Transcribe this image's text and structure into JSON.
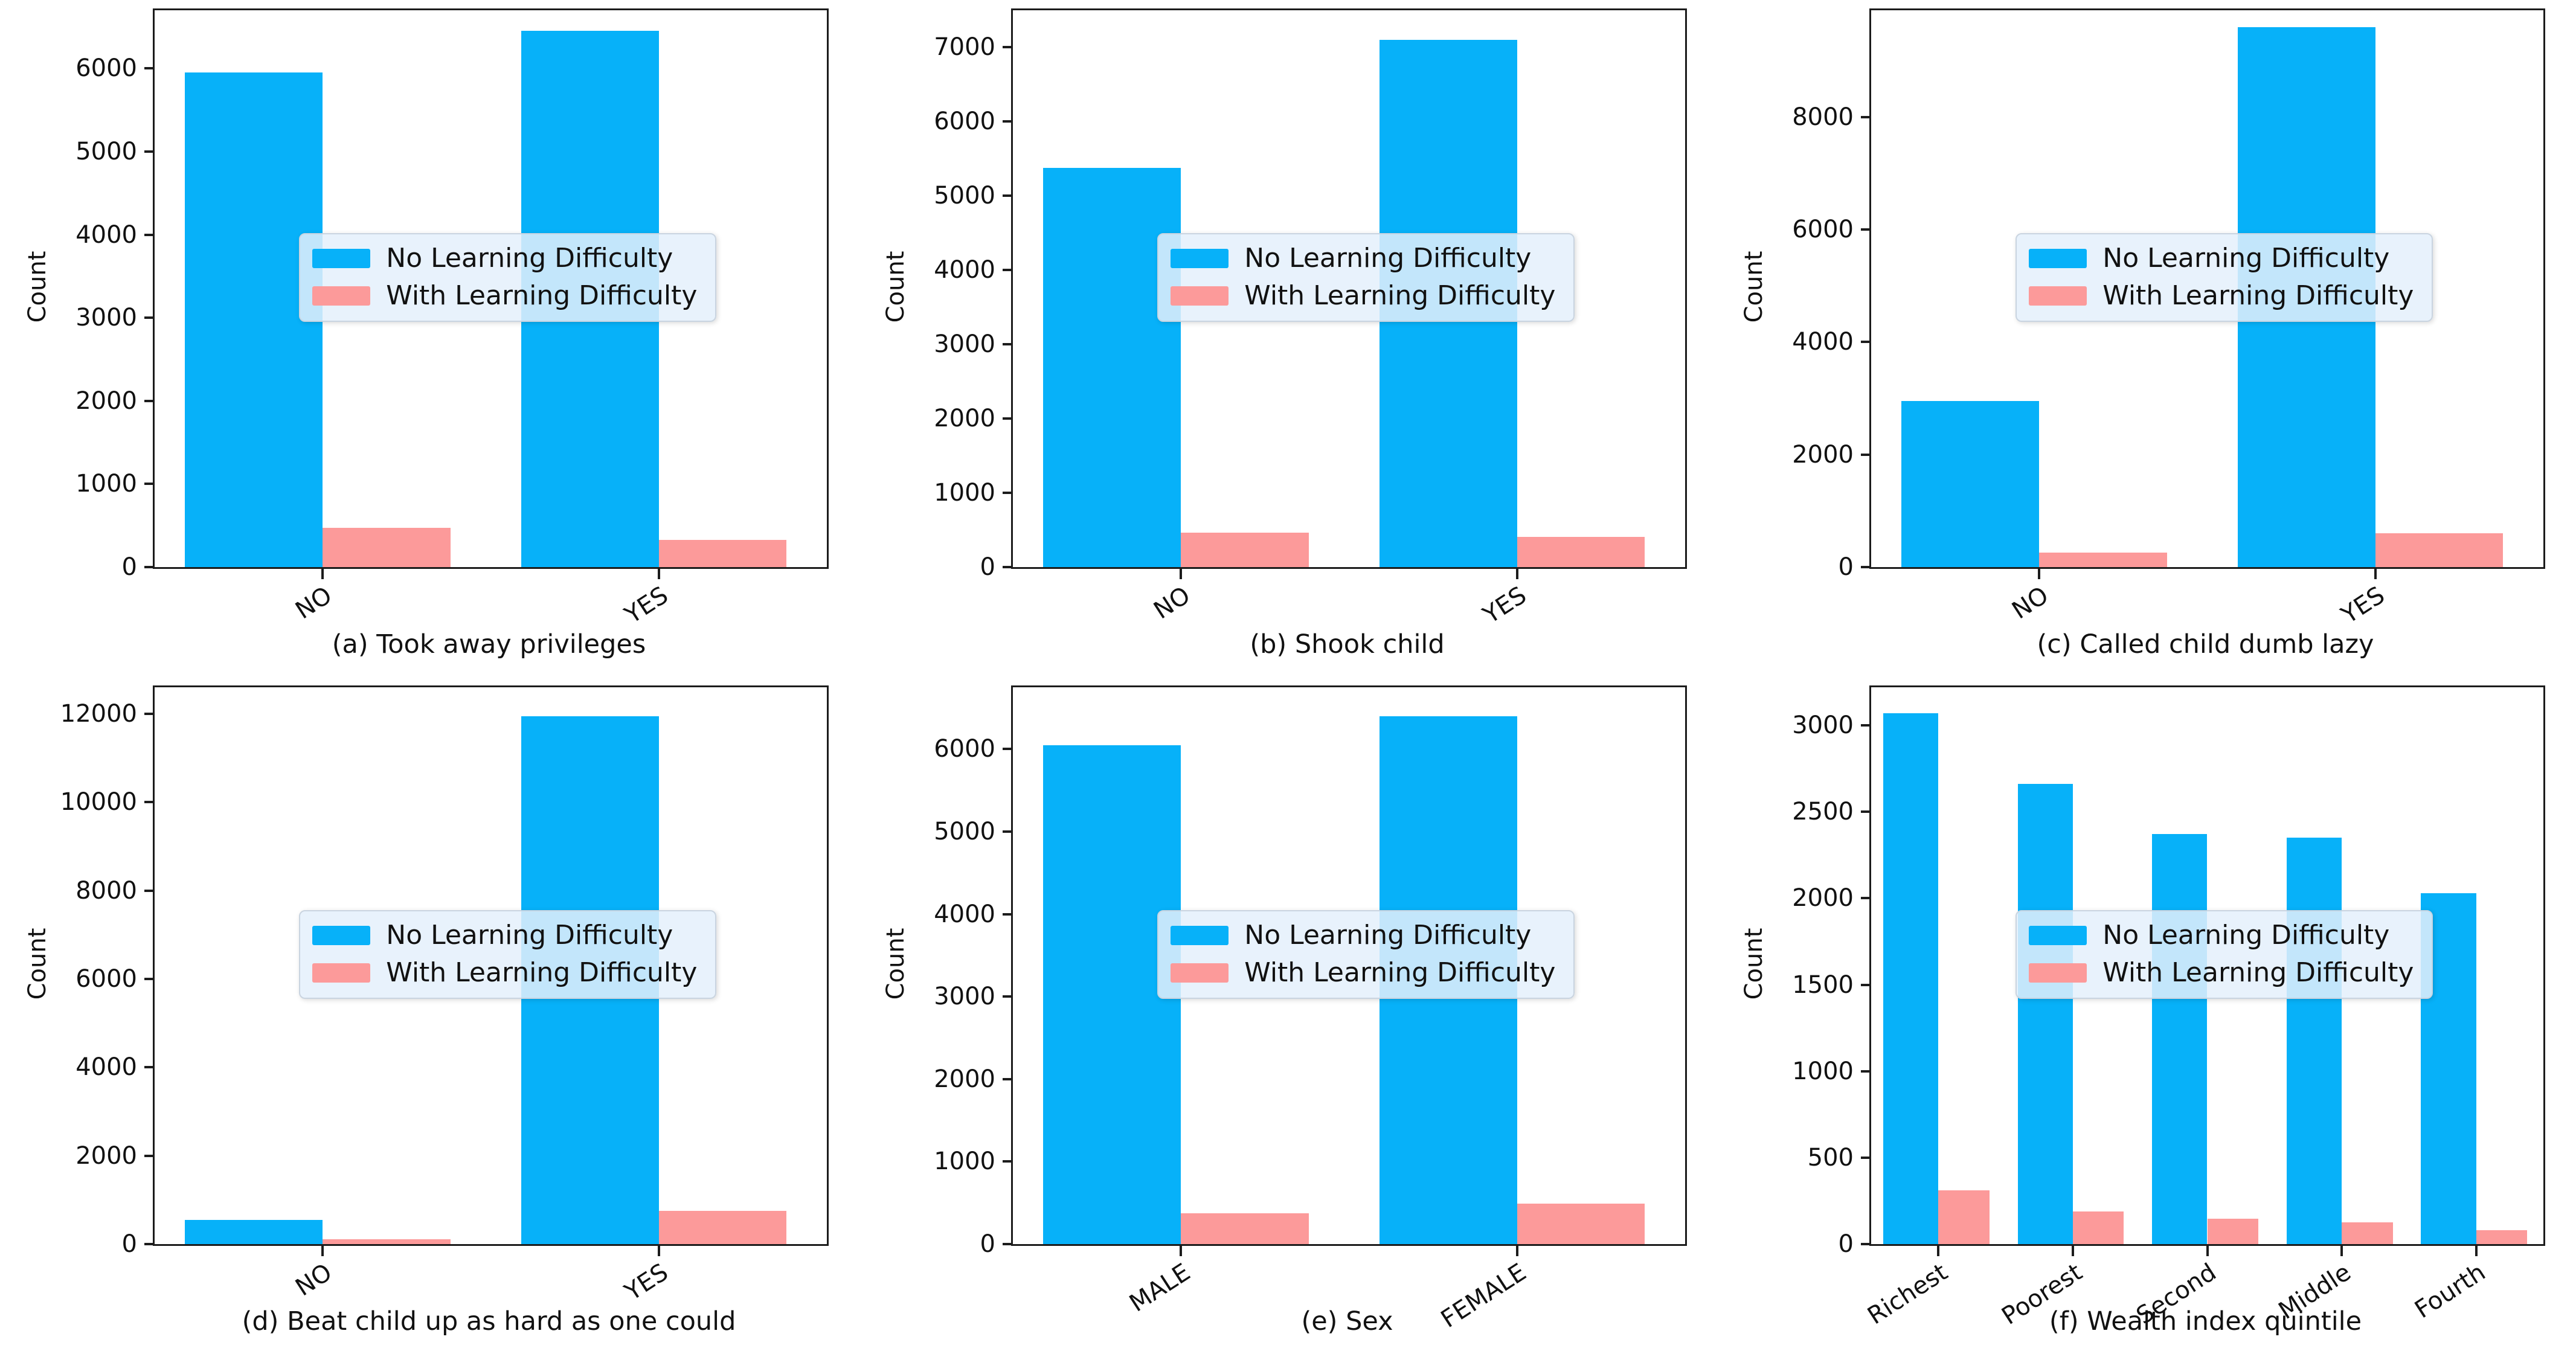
{
  "figure": {
    "ylabel": "Count"
  },
  "colors": {
    "no_learning": "#07B1F9",
    "with_learning": "#FC9A9A",
    "spine": "#1c1c1c",
    "legend_bg": "rgba(228,240,252,0.85)"
  },
  "legend": {
    "position": "center left",
    "items": [
      {
        "label": "No Learning Difficulty",
        "color": "#07B1F9"
      },
      {
        "label": "With Learning Difficulty",
        "color": "#FC9A9A"
      }
    ]
  },
  "chart_data": [
    {
      "id": "a",
      "type": "bar",
      "caption": "(a) Took away privileges",
      "xlabel": "Took away privileges",
      "ylabel": "Count",
      "categories": [
        "NO",
        "YES"
      ],
      "series": [
        {
          "name": "No Learning Difficulty",
          "values": [
            5950,
            6450
          ]
        },
        {
          "name": "With Learning Difficulty",
          "values": [
            470,
            330
          ]
        }
      ],
      "yticks": [
        0,
        1000,
        2000,
        3000,
        4000,
        5000,
        6000
      ],
      "ymax": 6700,
      "grid": false
    },
    {
      "id": "b",
      "type": "bar",
      "caption": "(b) Shook child",
      "xlabel": "Shook child",
      "ylabel": "Count",
      "categories": [
        "NO",
        "YES"
      ],
      "series": [
        {
          "name": "No Learning Difficulty",
          "values": [
            5380,
            7100
          ]
        },
        {
          "name": "With Learning Difficulty",
          "values": [
            460,
            405
          ]
        }
      ],
      "yticks": [
        0,
        1000,
        2000,
        3000,
        4000,
        5000,
        6000,
        7000
      ],
      "ymax": 7500,
      "grid": false
    },
    {
      "id": "c",
      "type": "bar",
      "caption": "(c) Called child dumb lazy",
      "xlabel": "Called child dumb lazy",
      "ylabel": "Count",
      "categories": [
        "NO",
        "YES"
      ],
      "series": [
        {
          "name": "No Learning Difficulty",
          "values": [
            2950,
            9600
          ]
        },
        {
          "name": "With Learning Difficulty",
          "values": [
            260,
            600
          ]
        }
      ],
      "yticks": [
        0,
        2000,
        4000,
        6000,
        8000
      ],
      "ymax": 9900,
      "grid": false
    },
    {
      "id": "d",
      "type": "bar",
      "caption": "(d) Beat child up as hard as one could",
      "xlabel": "Beat child up as hard as one could",
      "ylabel": "Count",
      "categories": [
        "NO",
        "YES"
      ],
      "series": [
        {
          "name": "No Learning Difficulty",
          "values": [
            550,
            11950
          ]
        },
        {
          "name": "With Learning Difficulty",
          "values": [
            110,
            750
          ]
        }
      ],
      "yticks": [
        0,
        2000,
        4000,
        6000,
        8000,
        10000,
        12000
      ],
      "ymax": 12600,
      "grid": false
    },
    {
      "id": "e",
      "type": "bar",
      "caption": "(e) Sex",
      "xlabel": "Sex",
      "ylabel": "Count",
      "categories": [
        "MALE",
        "FEMALE"
      ],
      "series": [
        {
          "name": "No Learning Difficulty",
          "values": [
            6050,
            6400
          ]
        },
        {
          "name": "With Learning Difficulty",
          "values": [
            370,
            490
          ]
        }
      ],
      "yticks": [
        0,
        1000,
        2000,
        3000,
        4000,
        5000,
        6000
      ],
      "ymax": 6750,
      "grid": false
    },
    {
      "id": "f",
      "type": "bar",
      "caption": "(f) Wealth index quintile",
      "xlabel": "Wealth index quintile",
      "ylabel": "Count",
      "categories": [
        "Richest",
        "Poorest",
        "Second",
        "Middle",
        "Fourth"
      ],
      "series": [
        {
          "name": "No Learning Difficulty",
          "values": [
            3070,
            2660,
            2370,
            2350,
            2030
          ]
        },
        {
          "name": "With Learning Difficulty",
          "values": [
            310,
            190,
            145,
            125,
            80
          ]
        }
      ],
      "yticks": [
        0,
        500,
        1000,
        1500,
        2000,
        2500,
        3000
      ],
      "ymax": 3220,
      "grid": false
    }
  ]
}
